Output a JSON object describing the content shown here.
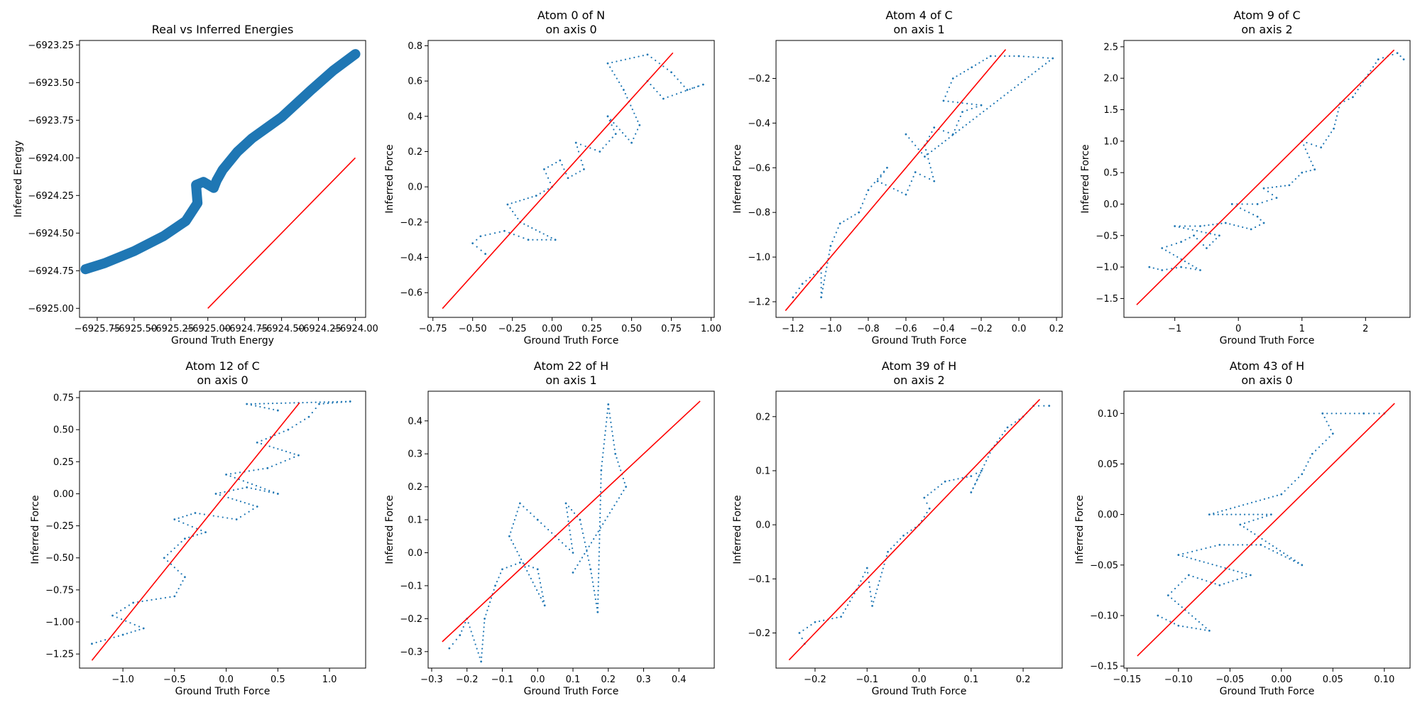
{
  "figure": {
    "background": "#ffffff",
    "point_color": "#1f77b4",
    "line_color": "#ff0000"
  },
  "chart_data": [
    {
      "type": "scatter",
      "title": "Real vs Inferred Energies",
      "xlabel": "Ground Truth Energy",
      "ylabel": "Inferred Energy",
      "xlim": [
        -6925.87,
        -6923.93
      ],
      "ylim": [
        -6925.06,
        -6923.22
      ],
      "xticks": [
        -6925.75,
        -6925.5,
        -6925.25,
        -6925.0,
        -6924.75,
        -6924.5,
        -6924.25,
        -6924.0
      ],
      "xtick_labels": [
        "−6925.75",
        "−6925.50",
        "−6925.25",
        "−6925.00",
        "−6924.75",
        "−6924.50",
        "−6924.25",
        "−6924.00"
      ],
      "yticks": [
        -6925.0,
        -6924.75,
        -6924.5,
        -6924.25,
        -6924.0,
        -6923.75,
        -6923.5,
        -6923.25
      ],
      "ytick_labels": [
        "−6925.00",
        "−6924.75",
        "−6924.50",
        "−6924.25",
        "−6924.00",
        "−6923.75",
        "−6923.50",
        "−6923.25"
      ],
      "marker_size": "large",
      "reference_line": {
        "x": [
          -6925.0,
          -6924.0
        ],
        "y": [
          -6925.0,
          -6924.0
        ]
      },
      "points": [
        [
          -6925.83,
          -6924.74
        ],
        [
          -6925.7,
          -6924.7
        ],
        [
          -6925.5,
          -6924.62
        ],
        [
          -6925.3,
          -6924.52
        ],
        [
          -6925.15,
          -6924.42
        ],
        [
          -6925.07,
          -6924.3
        ],
        [
          -6925.08,
          -6924.18
        ],
        [
          -6925.03,
          -6924.16
        ],
        [
          -6924.96,
          -6924.2
        ],
        [
          -6924.94,
          -6924.15
        ],
        [
          -6924.9,
          -6924.08
        ],
        [
          -6924.8,
          -6923.96
        ],
        [
          -6924.7,
          -6923.87
        ],
        [
          -6924.5,
          -6923.73
        ],
        [
          -6924.3,
          -6923.55
        ],
        [
          -6924.15,
          -6923.42
        ],
        [
          -6924.0,
          -6923.31
        ]
      ]
    },
    {
      "type": "scatter",
      "title": "Atom 0 of N\non axis 0",
      "xlabel": "Ground Truth Force",
      "ylabel": "Inferred Force",
      "xlim": [
        -0.78,
        1.02
      ],
      "ylim": [
        -0.74,
        0.83
      ],
      "xticks": [
        -0.75,
        -0.5,
        -0.25,
        0.0,
        0.25,
        0.5,
        0.75,
        1.0
      ],
      "xtick_labels": [
        "−0.75",
        "−0.50",
        "−0.25",
        "0.00",
        "0.25",
        "0.50",
        "0.75",
        "1.00"
      ],
      "yticks": [
        -0.6,
        -0.4,
        -0.2,
        0.0,
        0.2,
        0.4,
        0.6,
        0.8
      ],
      "ytick_labels": [
        "−0.6",
        "−0.4",
        "−0.2",
        "0.0",
        "0.2",
        "0.4",
        "0.6",
        "0.8"
      ],
      "marker_size": "small",
      "reference_line": {
        "x": [
          -0.69,
          0.76
        ],
        "y": [
          -0.69,
          0.76
        ]
      },
      "points": [
        [
          -0.42,
          -0.38
        ],
        [
          -0.5,
          -0.32
        ],
        [
          -0.45,
          -0.28
        ],
        [
          -0.3,
          -0.25
        ],
        [
          -0.15,
          -0.3
        ],
        [
          0.02,
          -0.3
        ],
        [
          -0.2,
          -0.2
        ],
        [
          -0.28,
          -0.1
        ],
        [
          -0.1,
          -0.05
        ],
        [
          0.0,
          0.0
        ],
        [
          -0.05,
          0.1
        ],
        [
          0.05,
          0.15
        ],
        [
          0.1,
          0.05
        ],
        [
          0.2,
          0.1
        ],
        [
          0.15,
          0.25
        ],
        [
          0.3,
          0.2
        ],
        [
          0.4,
          0.3
        ],
        [
          0.35,
          0.4
        ],
        [
          0.5,
          0.25
        ],
        [
          0.55,
          0.35
        ],
        [
          0.45,
          0.55
        ],
        [
          0.35,
          0.7
        ],
        [
          0.6,
          0.75
        ],
        [
          0.75,
          0.65
        ],
        [
          0.85,
          0.55
        ],
        [
          0.95,
          0.58
        ],
        [
          0.7,
          0.5
        ],
        [
          0.6,
          0.6
        ]
      ]
    },
    {
      "type": "scatter",
      "title": "Atom 4 of C\non axis 1",
      "xlabel": "Ground Truth Force",
      "ylabel": "Inferred Force",
      "xlim": [
        -1.29,
        0.23
      ],
      "ylim": [
        -1.27,
        -0.03
      ],
      "xticks": [
        -1.2,
        -1.0,
        -0.8,
        -0.6,
        -0.4,
        -0.2,
        0.0,
        0.2
      ],
      "xtick_labels": [
        "−1.2",
        "−1.0",
        "−0.8",
        "−0.6",
        "−0.4",
        "−0.2",
        "0.0",
        "0.2"
      ],
      "yticks": [
        -1.2,
        -1.0,
        -0.8,
        -0.6,
        -0.4,
        -0.2
      ],
      "ytick_labels": [
        "−1.2",
        "−1.0",
        "−0.8",
        "−0.6",
        "−0.4",
        "−0.2"
      ],
      "marker_size": "small",
      "reference_line": {
        "x": [
          -1.24,
          -0.07
        ],
        "y": [
          -1.24,
          -0.07
        ]
      },
      "points": [
        [
          -1.2,
          -1.18
        ],
        [
          -1.15,
          -1.12
        ],
        [
          -1.05,
          -1.05
        ],
        [
          -1.05,
          -1.18
        ],
        [
          -1.0,
          -0.95
        ],
        [
          -0.95,
          -0.85
        ],
        [
          -0.85,
          -0.8
        ],
        [
          -0.8,
          -0.7
        ],
        [
          -0.7,
          -0.6
        ],
        [
          -0.75,
          -0.66
        ],
        [
          -0.6,
          -0.72
        ],
        [
          -0.55,
          -0.62
        ],
        [
          -0.45,
          -0.66
        ],
        [
          -0.5,
          -0.5
        ],
        [
          -0.45,
          -0.42
        ],
        [
          -0.35,
          -0.45
        ],
        [
          -0.3,
          -0.35
        ],
        [
          -0.2,
          -0.32
        ],
        [
          -0.4,
          -0.3
        ],
        [
          -0.35,
          -0.2
        ],
        [
          -0.25,
          -0.15
        ],
        [
          -0.15,
          -0.1
        ],
        [
          0.0,
          -0.1
        ],
        [
          0.18,
          -0.11
        ],
        [
          -0.5,
          -0.55
        ],
        [
          -0.6,
          -0.45
        ]
      ]
    },
    {
      "type": "scatter",
      "title": "Atom 9 of C\non axis 2",
      "xlabel": "Ground Truth Force",
      "ylabel": "Inferred Force",
      "xlim": [
        -1.8,
        2.7
      ],
      "ylim": [
        -1.8,
        2.6
      ],
      "xticks": [
        -1,
        0,
        1,
        2
      ],
      "xtick_labels": [
        "−1",
        "0",
        "1",
        "2"
      ],
      "yticks": [
        -1.5,
        -1.0,
        -0.5,
        0.0,
        0.5,
        1.0,
        1.5,
        2.0,
        2.5
      ],
      "ytick_labels": [
        "−1.5",
        "−1.0",
        "−0.5",
        "0.0",
        "0.5",
        "1.0",
        "1.5",
        "2.0",
        "2.5"
      ],
      "marker_size": "small",
      "reference_line": {
        "x": [
          -1.6,
          2.45
        ],
        "y": [
          -1.6,
          2.45
        ]
      },
      "points": [
        [
          -1.4,
          -1.0
        ],
        [
          -1.2,
          -1.05
        ],
        [
          -0.9,
          -1.0
        ],
        [
          -0.6,
          -1.05
        ],
        [
          -1.2,
          -0.7
        ],
        [
          -0.9,
          -0.6
        ],
        [
          -0.7,
          -0.5
        ],
        [
          -0.5,
          -0.7
        ],
        [
          -0.3,
          -0.5
        ],
        [
          -1.0,
          -0.35
        ],
        [
          -0.6,
          -0.35
        ],
        [
          -0.2,
          -0.3
        ],
        [
          0.2,
          -0.4
        ],
        [
          0.4,
          -0.3
        ],
        [
          0.3,
          -0.2
        ],
        [
          -0.1,
          0.0
        ],
        [
          0.3,
          0.0
        ],
        [
          0.6,
          0.1
        ],
        [
          0.4,
          0.25
        ],
        [
          0.8,
          0.3
        ],
        [
          1.0,
          0.5
        ],
        [
          1.2,
          0.55
        ],
        [
          1.0,
          1.0
        ],
        [
          1.3,
          0.9
        ],
        [
          1.5,
          1.2
        ],
        [
          1.6,
          1.6
        ],
        [
          1.8,
          1.7
        ],
        [
          2.0,
          2.0
        ],
        [
          2.2,
          2.3
        ],
        [
          2.5,
          2.4
        ],
        [
          2.6,
          2.3
        ]
      ]
    },
    {
      "type": "scatter",
      "title": "Atom 12 of C\non axis 0",
      "xlabel": "Ground Truth Force",
      "ylabel": "Inferred Force",
      "xlim": [
        -1.42,
        1.35
      ],
      "ylim": [
        -1.36,
        0.8
      ],
      "xticks": [
        -1.0,
        -0.5,
        0.0,
        0.5,
        1.0
      ],
      "xtick_labels": [
        "−1.0",
        "−0.5",
        "0.0",
        "0.5",
        "1.0"
      ],
      "yticks": [
        -1.25,
        -1.0,
        -0.75,
        -0.5,
        -0.25,
        0.0,
        0.25,
        0.5,
        0.75
      ],
      "ytick_labels": [
        "−1.25",
        "−1.00",
        "−0.75",
        "−0.50",
        "−0.25",
        "0.00",
        "0.25",
        "0.50",
        "0.75"
      ],
      "marker_size": "small",
      "reference_line": {
        "x": [
          -1.3,
          0.71
        ],
        "y": [
          -1.3,
          0.71
        ]
      },
      "points": [
        [
          -1.3,
          -1.17
        ],
        [
          -1.0,
          -1.1
        ],
        [
          -0.8,
          -1.05
        ],
        [
          -1.1,
          -0.95
        ],
        [
          -0.9,
          -0.85
        ],
        [
          -0.5,
          -0.8
        ],
        [
          -0.4,
          -0.65
        ],
        [
          -0.6,
          -0.5
        ],
        [
          -0.4,
          -0.35
        ],
        [
          -0.2,
          -0.3
        ],
        [
          -0.5,
          -0.2
        ],
        [
          -0.3,
          -0.15
        ],
        [
          0.1,
          -0.2
        ],
        [
          0.3,
          -0.1
        ],
        [
          -0.1,
          0.0
        ],
        [
          0.2,
          0.05
        ],
        [
          0.5,
          0.0
        ],
        [
          0.0,
          0.15
        ],
        [
          0.4,
          0.2
        ],
        [
          0.7,
          0.3
        ],
        [
          0.3,
          0.4
        ],
        [
          0.6,
          0.5
        ],
        [
          0.8,
          0.6
        ],
        [
          0.9,
          0.7
        ],
        [
          1.2,
          0.72
        ],
        [
          0.2,
          0.7
        ],
        [
          0.5,
          0.65
        ]
      ]
    },
    {
      "type": "scatter",
      "title": "Atom 22 of H\non axis 1",
      "xlabel": "Ground Truth Force",
      "ylabel": "Inferred Force",
      "xlim": [
        -0.31,
        0.5
      ],
      "ylim": [
        -0.35,
        0.49
      ],
      "xticks": [
        -0.3,
        -0.2,
        -0.1,
        0.0,
        0.1,
        0.2,
        0.3,
        0.4
      ],
      "xtick_labels": [
        "−0.3",
        "−0.2",
        "−0.1",
        "0.0",
        "0.1",
        "0.2",
        "0.3",
        "0.4"
      ],
      "yticks": [
        -0.3,
        -0.2,
        -0.1,
        0.0,
        0.1,
        0.2,
        0.3,
        0.4
      ],
      "ytick_labels": [
        "−0.3",
        "−0.2",
        "−0.1",
        "0.0",
        "0.1",
        "0.2",
        "0.3",
        "0.4"
      ],
      "marker_size": "small",
      "reference_line": {
        "x": [
          -0.27,
          0.46
        ],
        "y": [
          -0.27,
          0.46
        ]
      },
      "points": [
        [
          -0.25,
          -0.29
        ],
        [
          -0.22,
          -0.25
        ],
        [
          -0.2,
          -0.2
        ],
        [
          -0.16,
          -0.33
        ],
        [
          -0.15,
          -0.2
        ],
        [
          -0.12,
          -0.1
        ],
        [
          -0.1,
          -0.05
        ],
        [
          -0.05,
          -0.03
        ],
        [
          0.0,
          -0.05
        ],
        [
          0.02,
          -0.16
        ],
        [
          -0.08,
          0.05
        ],
        [
          -0.05,
          0.15
        ],
        [
          0.0,
          0.1
        ],
        [
          0.05,
          0.05
        ],
        [
          0.1,
          0.0
        ],
        [
          0.08,
          0.15
        ],
        [
          0.12,
          0.1
        ],
        [
          0.15,
          -0.05
        ],
        [
          0.17,
          -0.18
        ],
        [
          0.18,
          0.25
        ],
        [
          0.2,
          0.45
        ],
        [
          0.22,
          0.3
        ],
        [
          0.25,
          0.2
        ],
        [
          0.1,
          -0.06
        ]
      ]
    },
    {
      "type": "scatter",
      "title": "Atom 39 of H\non axis 2",
      "xlabel": "Ground Truth Force",
      "ylabel": "Inferred Force",
      "xlim": [
        -0.275,
        0.275
      ],
      "ylim": [
        -0.265,
        0.247
      ],
      "xticks": [
        -0.2,
        -0.1,
        0.0,
        0.1,
        0.2
      ],
      "xtick_labels": [
        "−0.2",
        "−0.1",
        "0.0",
        "0.1",
        "0.2"
      ],
      "yticks": [
        -0.2,
        -0.1,
        0.0,
        0.1,
        0.2
      ],
      "ytick_labels": [
        "−0.2",
        "−0.1",
        "0.0",
        "0.1",
        "0.2"
      ],
      "marker_size": "small",
      "reference_line": {
        "x": [
          -0.25,
          0.232
        ],
        "y": [
          -0.25,
          0.232
        ]
      },
      "points": [
        [
          -0.22,
          -0.22
        ],
        [
          -0.23,
          -0.2
        ],
        [
          -0.2,
          -0.18
        ],
        [
          -0.15,
          -0.17
        ],
        [
          -0.12,
          -0.12
        ],
        [
          -0.1,
          -0.08
        ],
        [
          -0.09,
          -0.15
        ],
        [
          -0.06,
          -0.05
        ],
        [
          -0.03,
          -0.02
        ],
        [
          0.0,
          0.0
        ],
        [
          0.02,
          0.03
        ],
        [
          0.01,
          0.05
        ],
        [
          0.05,
          0.08
        ],
        [
          0.1,
          0.09
        ],
        [
          0.12,
          0.1
        ],
        [
          0.1,
          0.06
        ],
        [
          0.14,
          0.14
        ],
        [
          0.17,
          0.18
        ],
        [
          0.2,
          0.2
        ],
        [
          0.22,
          0.22
        ],
        [
          0.25,
          0.22
        ]
      ]
    },
    {
      "type": "scatter",
      "title": "Atom 43 of H\non axis 0",
      "xlabel": "Ground Truth Force",
      "ylabel": "Inferred Force",
      "xlim": [
        -0.153,
        0.125
      ],
      "ylim": [
        -0.152,
        0.122
      ],
      "xticks": [
        -0.15,
        -0.1,
        -0.05,
        0.0,
        0.05,
        0.1
      ],
      "xtick_labels": [
        "−0.15",
        "−0.10",
        "−0.05",
        "0.00",
        "0.05",
        "0.10"
      ],
      "yticks": [
        -0.15,
        -0.1,
        -0.05,
        0.0,
        0.05,
        0.1
      ],
      "ytick_labels": [
        "−0.15",
        "−0.10",
        "−0.05",
        "0.00",
        "0.05",
        "0.10"
      ],
      "marker_size": "small",
      "reference_line": {
        "x": [
          -0.14,
          0.11
        ],
        "y": [
          -0.14,
          0.11
        ]
      },
      "points": [
        [
          -0.12,
          -0.1
        ],
        [
          -0.1,
          -0.11
        ],
        [
          -0.07,
          -0.115
        ],
        [
          -0.11,
          -0.08
        ],
        [
          -0.09,
          -0.06
        ],
        [
          -0.06,
          -0.07
        ],
        [
          -0.03,
          -0.06
        ],
        [
          -0.1,
          -0.04
        ],
        [
          -0.06,
          -0.03
        ],
        [
          -0.02,
          -0.03
        ],
        [
          0.02,
          -0.05
        ],
        [
          -0.04,
          -0.01
        ],
        [
          -0.01,
          0.0
        ],
        [
          -0.07,
          0.0
        ],
        [
          0.0,
          0.02
        ],
        [
          0.02,
          0.04
        ],
        [
          0.03,
          0.06
        ],
        [
          0.05,
          0.08
        ],
        [
          0.04,
          0.1
        ],
        [
          0.08,
          0.1
        ],
        [
          0.1,
          0.1
        ]
      ]
    }
  ]
}
